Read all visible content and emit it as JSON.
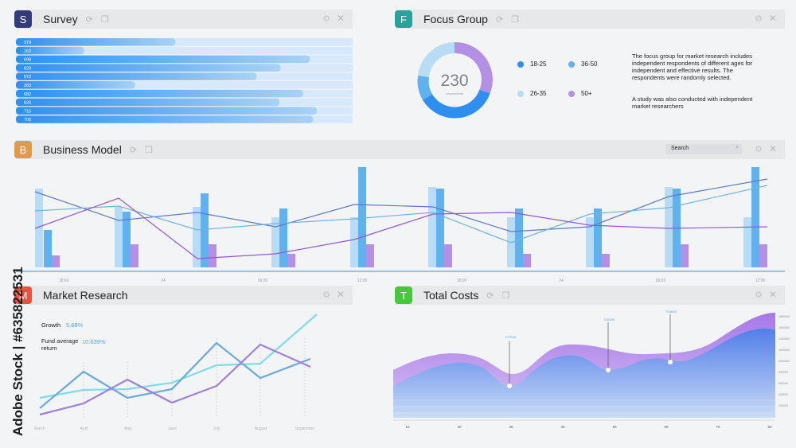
{
  "panels": {
    "survey": {
      "badge": "S",
      "title": "Survey",
      "color": "#343b7a"
    },
    "focus": {
      "badge": "F",
      "title": "Focus Group",
      "color": "#27a39c"
    },
    "business": {
      "badge": "B",
      "title": "Business Model",
      "color": "#e09a4e"
    },
    "market": {
      "badge": "M",
      "title": "Market Research",
      "color": "#e5533e"
    },
    "costs": {
      "badge": "T",
      "title": "Total Costs",
      "color": "#47c83a"
    }
  },
  "header_icons": {
    "refresh": "refresh-icon",
    "copy": "copy-icon",
    "settings": "gear-icon",
    "close": "close-icon"
  },
  "survey": {
    "values": [
      379,
      162,
      698,
      629,
      572,
      283,
      682,
      626,
      715,
      706
    ]
  },
  "focus": {
    "total": "230",
    "sublabel": "respondents",
    "legend": [
      {
        "label": "18-25",
        "color": "#2e8ff0"
      },
      {
        "label": "36-50",
        "color": "#5fb2ee"
      },
      {
        "label": "26-35",
        "color": "#b8dcf5"
      },
      {
        "label": "50+",
        "color": "#b48fe6"
      }
    ],
    "description1": "The focus group for market research includes independent respondents of different ages for independent and effective results. The respondents were randomly selected.",
    "description2": "A study was also conducted with independent market researchers"
  },
  "business": {
    "search_label": "Search",
    "x_ticks": [
      "18:00",
      "24",
      "06:00",
      "12:00",
      "18:00",
      "24",
      "06:00",
      "12:00"
    ]
  },
  "market": {
    "growth_label": "Growth",
    "growth_value": "5.68%",
    "fund_label": "Fund average return",
    "fund_value": "10.639%",
    "months": [
      "March",
      "April",
      "May",
      "June",
      "July",
      "August",
      "September"
    ]
  },
  "costs": {
    "annotations": [
      "T0702B",
      "T0652B",
      "T0682B"
    ],
    "x_ticks": [
      "10",
      "20",
      "30",
      "40",
      "50",
      "60",
      "70",
      "80"
    ],
    "y_ticks": [
      "1800000",
      "1600000",
      "1400000",
      "1200000",
      "1000000",
      "800000",
      "600000",
      "400000",
      "200000"
    ]
  },
  "watermark": "Adobe Stock | #635822531"
}
